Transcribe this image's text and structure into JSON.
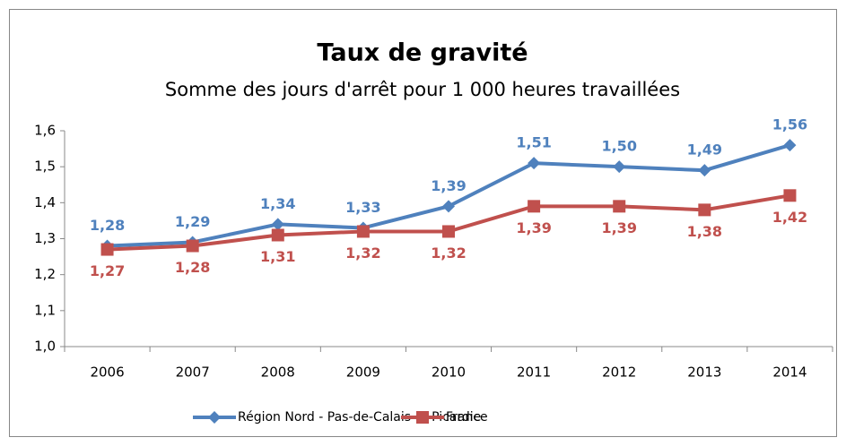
{
  "chart_data": {
    "type": "line",
    "title": "Taux de gravité",
    "subtitle": "Somme des jours d'arrêt pour 1 000 heures travaillées",
    "categories": [
      "2006",
      "2007",
      "2008",
      "2009",
      "2010",
      "2011",
      "2012",
      "2013",
      "2014"
    ],
    "series": [
      {
        "name": "Région Nord - Pas-de-Calais et Picardie",
        "color": "#4f81bd",
        "marker": "diamond",
        "values": [
          1.28,
          1.29,
          1.34,
          1.33,
          1.39,
          1.51,
          1.5,
          1.49,
          1.56
        ],
        "value_labels": [
          "1,28",
          "1,29",
          "1,34",
          "1,33",
          "1,39",
          "1,51",
          "1,50",
          "1,49",
          "1,56"
        ]
      },
      {
        "name": "France",
        "color": "#c0504d",
        "marker": "square",
        "values": [
          1.27,
          1.28,
          1.31,
          1.32,
          1.32,
          1.39,
          1.39,
          1.38,
          1.42
        ],
        "value_labels": [
          "1,27",
          "1,28",
          "1,31",
          "1,32",
          "1,32",
          "1,39",
          "1,39",
          "1,38",
          "1,42"
        ]
      }
    ],
    "ylim": [
      1.0,
      1.6
    ],
    "yticks": [
      {
        "value": 1.0,
        "label": "1,0"
      },
      {
        "value": 1.1,
        "label": "1,1"
      },
      {
        "value": 1.2,
        "label": "1,2"
      },
      {
        "value": 1.3,
        "label": "1,3"
      },
      {
        "value": 1.4,
        "label": "1,4"
      },
      {
        "value": 1.5,
        "label": "1,5"
      },
      {
        "value": 1.6,
        "label": "1,6"
      }
    ],
    "grid": false,
    "legend": "bottom"
  }
}
